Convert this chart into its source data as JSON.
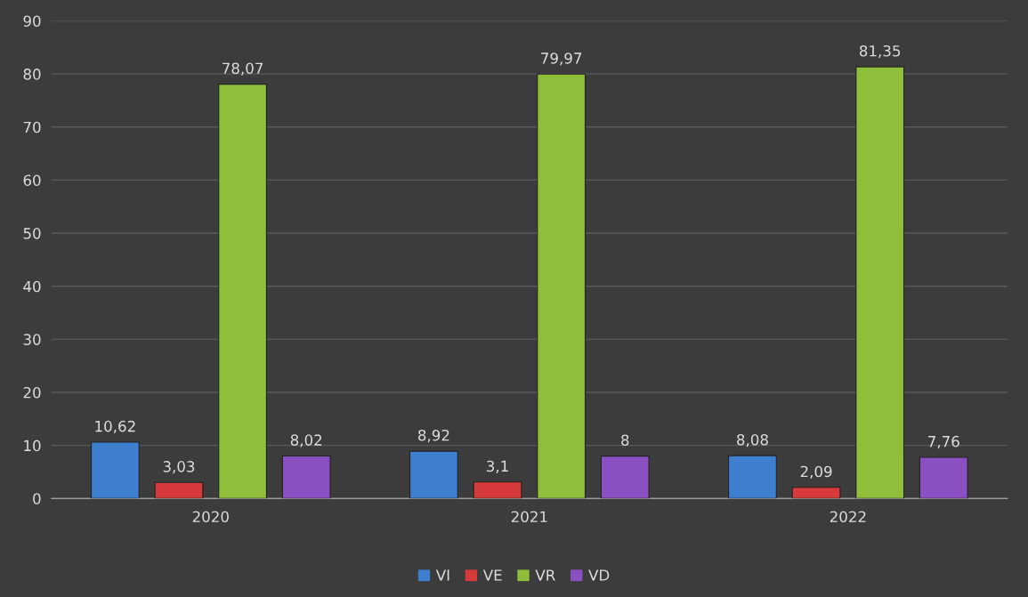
{
  "chart_data": {
    "type": "bar",
    "categories": [
      "2020",
      "2021",
      "2022"
    ],
    "series": [
      {
        "name": "VI",
        "color": "#3f7fd0",
        "values": [
          10.62,
          8.92,
          8.08
        ],
        "value_labels": [
          "10,62",
          "8,92",
          "8,08"
        ]
      },
      {
        "name": "VE",
        "color": "#d63a3a",
        "values": [
          3.03,
          3.1,
          2.09
        ],
        "value_labels": [
          "3,03",
          "3,1",
          "2,09"
        ]
      },
      {
        "name": "VR",
        "color": "#8fbf3a",
        "values": [
          78.07,
          79.97,
          81.35
        ],
        "value_labels": [
          "78,07",
          "79,97",
          "81,35"
        ]
      },
      {
        "name": "VD",
        "color": "#8a4fc0",
        "values": [
          8.02,
          8,
          7.76
        ],
        "value_labels": [
          "8,02",
          "8",
          "7,76"
        ]
      }
    ],
    "ylim": [
      0,
      90
    ],
    "yticks": [
      0,
      10,
      20,
      30,
      40,
      50,
      60,
      70,
      80,
      90
    ],
    "grid": "y",
    "legend": "bottom"
  }
}
